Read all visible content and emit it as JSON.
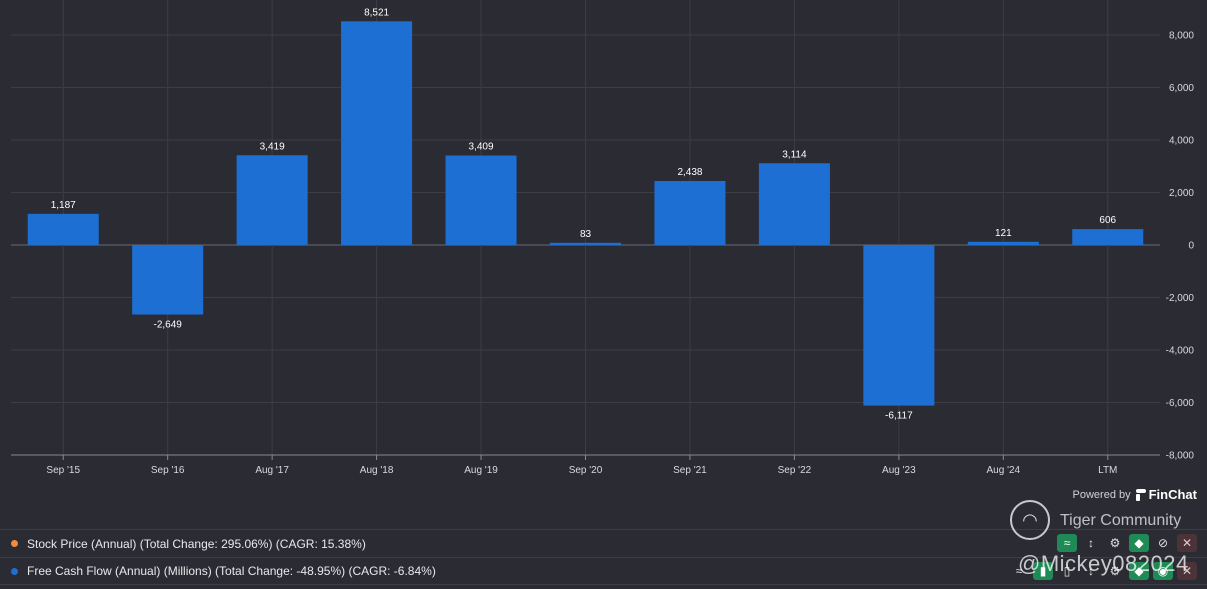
{
  "chart_data": {
    "type": "bar",
    "categories": [
      "Sep '15",
      "Sep '16",
      "Aug '17",
      "Aug '18",
      "Aug '19",
      "Sep '20",
      "Sep '21",
      "Sep '22",
      "Aug '23",
      "Aug '24",
      "LTM"
    ],
    "values": [
      1187,
      -2649,
      3419,
      8521,
      3409,
      83,
      2438,
      3114,
      -6117,
      121,
      606
    ],
    "value_labels": [
      "1,187",
      "-2,649",
      "3,419",
      "8,521",
      "3,409",
      "83",
      "2,438",
      "3,114",
      "-6,117",
      "121",
      "606"
    ],
    "ylim": [
      -8000,
      8000
    ],
    "yticks": [
      8000,
      6000,
      4000,
      2000,
      0,
      -2000,
      -4000,
      -6000,
      -8000
    ],
    "ytick_labels": [
      "8,000",
      "6,000",
      "4,000",
      "2,000",
      "0",
      "-2,000",
      "-4,000",
      "-6,000",
      "-8,000"
    ],
    "y_axis_side": "right",
    "grid": true,
    "bar_color": "#1e6fd3",
    "title": "",
    "xlabel": "",
    "ylabel": ""
  },
  "footer": {
    "powered_by": "Powered by",
    "brand": "FinChat"
  },
  "legend": [
    {
      "text": "Stock Price (Annual) (Total Change: 295.06%) (CAGR: 15.38%)",
      "color": "#f28c3c"
    },
    {
      "text": "Free Cash Flow (Annual) (Millions) (Total Change: -48.95%) (CAGR: -6.84%)",
      "color": "#1e6fd3"
    }
  ],
  "watermark": {
    "community": "Tiger Community",
    "handle": "@Mickey082024"
  },
  "colors": {
    "background": "#2b2b33",
    "grid": "#3d3d46",
    "bar": "#1e6fd3"
  }
}
